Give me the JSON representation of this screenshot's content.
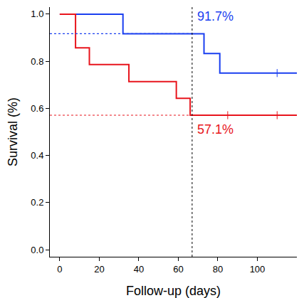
{
  "chart_data": {
    "type": "line",
    "line_style": "step",
    "marker": "tick",
    "grid": false,
    "xlabel": "Follow-up (days)",
    "ylabel": "Survival (%)",
    "xlim": [
      -5,
      120
    ],
    "xticks": [
      0,
      20,
      40,
      60,
      80,
      100
    ],
    "ylim": [
      -0.03,
      1.03
    ],
    "yticks": [
      {
        "value": 0,
        "label": "0.0"
      },
      {
        "value": 0.2,
        "label": "0.2"
      },
      {
        "value": 0.4,
        "label": "0.4"
      },
      {
        "value": 0.6,
        "label": "0.6"
      },
      {
        "value": 0.8,
        "label": "0.8"
      },
      {
        "value": 1,
        "label": "1.0"
      }
    ],
    "landmark_x": 67,
    "series": [
      {
        "color": "#1a3ff0",
        "x": [
          0,
          32,
          73,
          81,
          120
        ],
        "values": [
          1,
          0.917,
          0.833,
          0.75,
          0.75
        ],
        "censored_x": [
          110
        ],
        "landmark": {
          "value": 0.917,
          "label": "91.7%"
        }
      },
      {
        "color": "#e8141c",
        "x": [
          0,
          8,
          15,
          35,
          59,
          66,
          120
        ],
        "values": [
          1,
          0.857,
          0.786,
          0.714,
          0.643,
          0.571,
          0.571
        ],
        "censored_x": [
          85,
          110
        ],
        "landmark": {
          "value": 0.571,
          "label": "57.1%"
        }
      }
    ]
  }
}
